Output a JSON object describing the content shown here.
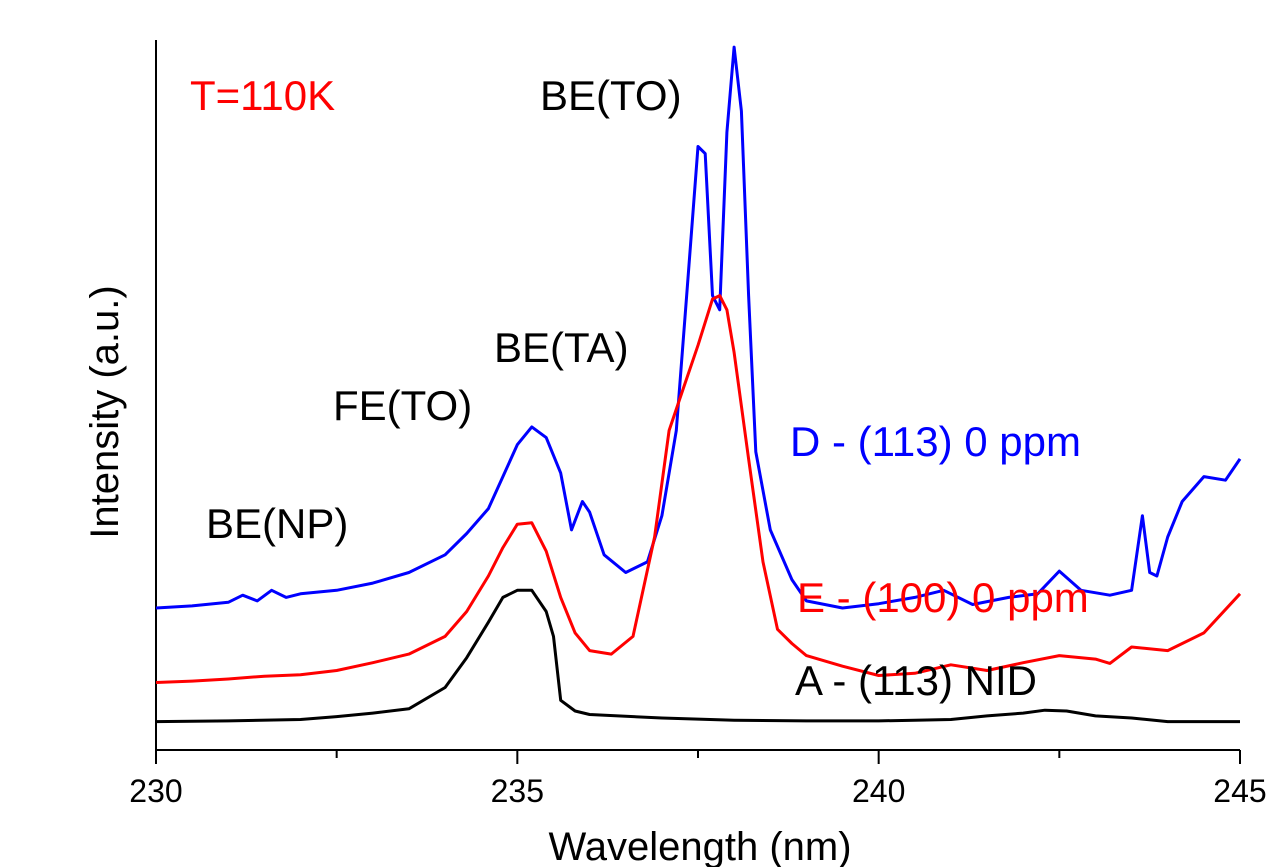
{
  "chart_data": {
    "type": "line",
    "xlabel": "Wavelength (nm)",
    "ylabel": "Intensity (a.u.)",
    "xlim": [
      230,
      245
    ],
    "ylim": [
      0,
      1
    ],
    "x_ticks": [
      "230",
      "235",
      "240",
      "245"
    ],
    "y_ticks_labeled": false,
    "grid": false,
    "series": [
      {
        "name": "D - (113) 0 ppm",
        "color": "#0000ff",
        "x": [
          230,
          230.5,
          231,
          231.2,
          231.4,
          231.6,
          231.8,
          232,
          232.5,
          233,
          233.5,
          234,
          234.3,
          234.6,
          234.8,
          235,
          235.2,
          235.4,
          235.6,
          235.75,
          235.9,
          236,
          236.2,
          236.5,
          236.8,
          237,
          237.2,
          237.35,
          237.5,
          237.6,
          237.7,
          237.8,
          237.9,
          238,
          238.1,
          238.2,
          238.3,
          238.5,
          238.8,
          239,
          239.5,
          240,
          240.5,
          240.9,
          241.3,
          241.8,
          242.2,
          242.5,
          242.8,
          243.2,
          243.5,
          243.65,
          243.75,
          243.85,
          244,
          244.2,
          244.5,
          244.8,
          245
        ],
        "y": [
          0.2,
          0.203,
          0.208,
          0.218,
          0.21,
          0.225,
          0.215,
          0.22,
          0.225,
          0.235,
          0.25,
          0.275,
          0.305,
          0.34,
          0.385,
          0.43,
          0.455,
          0.44,
          0.39,
          0.31,
          0.35,
          0.335,
          0.275,
          0.25,
          0.265,
          0.33,
          0.45,
          0.65,
          0.85,
          0.84,
          0.64,
          0.62,
          0.87,
          0.99,
          0.9,
          0.64,
          0.42,
          0.31,
          0.24,
          0.21,
          0.2,
          0.206,
          0.215,
          0.225,
          0.205,
          0.215,
          0.22,
          0.252,
          0.225,
          0.218,
          0.225,
          0.33,
          0.25,
          0.245,
          0.3,
          0.35,
          0.385,
          0.38,
          0.41
        ]
      },
      {
        "name": "E - (100) 0 ppm",
        "color": "#ff0000",
        "x": [
          230,
          230.5,
          231,
          231.5,
          232,
          232.5,
          233,
          233.5,
          234,
          234.3,
          234.6,
          234.8,
          235,
          235.2,
          235.4,
          235.6,
          235.8,
          236,
          236.3,
          236.6,
          236.9,
          237.1,
          237.3,
          237.5,
          237.7,
          237.8,
          237.9,
          238,
          238.2,
          238.4,
          238.6,
          238.8,
          239,
          239.5,
          240,
          240.5,
          241,
          241.5,
          242,
          242.5,
          243,
          243.2,
          243.5,
          244,
          244.5,
          245
        ],
        "y": [
          0.095,
          0.097,
          0.1,
          0.104,
          0.106,
          0.112,
          0.123,
          0.135,
          0.16,
          0.195,
          0.245,
          0.285,
          0.318,
          0.32,
          0.28,
          0.215,
          0.165,
          0.14,
          0.135,
          0.16,
          0.3,
          0.45,
          0.51,
          0.57,
          0.635,
          0.64,
          0.62,
          0.56,
          0.41,
          0.265,
          0.17,
          0.15,
          0.133,
          0.118,
          0.105,
          0.108,
          0.12,
          0.112,
          0.123,
          0.133,
          0.128,
          0.122,
          0.145,
          0.14,
          0.165,
          0.22
        ]
      },
      {
        "name": "A - (113) NID",
        "color": "#000000",
        "x": [
          230,
          231,
          232,
          232.5,
          233,
          233.5,
          234,
          234.3,
          234.6,
          234.8,
          235,
          235.2,
          235.4,
          235.5,
          235.6,
          235.8,
          236,
          237,
          238,
          239,
          240,
          240.5,
          241,
          241.5,
          242,
          242.3,
          242.6,
          243,
          243.5,
          244,
          245
        ],
        "y": [
          0.04,
          0.041,
          0.043,
          0.047,
          0.052,
          0.058,
          0.088,
          0.13,
          0.18,
          0.215,
          0.225,
          0.225,
          0.195,
          0.16,
          0.07,
          0.055,
          0.05,
          0.045,
          0.042,
          0.041,
          0.041,
          0.042,
          0.043,
          0.048,
          0.052,
          0.056,
          0.055,
          0.048,
          0.045,
          0.04,
          0.04
        ]
      }
    ],
    "legend_labels": [
      {
        "text": "D - (113) 0 ppm",
        "color": "#0000ff"
      },
      {
        "text": "E - (100) 0 ppm",
        "color": "#ff0000"
      },
      {
        "text": "A - (113) NID",
        "color": "#000000"
      }
    ],
    "annotations": [
      {
        "text": "T=110K",
        "color": "#ff0000"
      },
      {
        "text": "BE(TO)",
        "color": "#000000"
      },
      {
        "text": "BE(TA)",
        "color": "#000000"
      },
      {
        "text": "FE(TO)",
        "color": "#000000"
      },
      {
        "text": "BE(NP)",
        "color": "#000000"
      }
    ]
  }
}
